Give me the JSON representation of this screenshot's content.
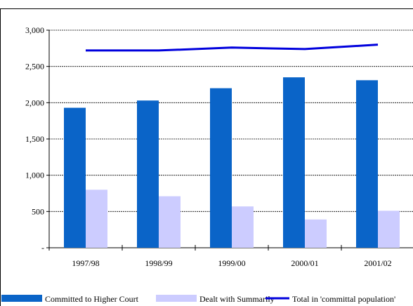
{
  "chart_data": {
    "type": "bar",
    "categories": [
      "1997/98",
      "1998/99",
      "1999/00",
      "2000/01",
      "2001/02"
    ],
    "series": [
      {
        "name": "Committed to Higher Court",
        "kind": "bar",
        "color": "#0a64c8",
        "values": [
          1930,
          2030,
          2200,
          2350,
          2310
        ]
      },
      {
        "name": "Dealt with Summarily",
        "kind": "bar",
        "color": "#ccccff",
        "values": [
          800,
          710,
          570,
          390,
          510
        ]
      },
      {
        "name": "Total in 'committal population'",
        "kind": "line",
        "color": "#0000dd",
        "values": [
          2720,
          2720,
          2760,
          2740,
          2800
        ]
      }
    ],
    "yticks": [
      "-",
      "500",
      "1,000",
      "1,500",
      "2,000",
      "2,500",
      "3,000"
    ],
    "ylim": [
      0,
      3000
    ],
    "grid": true,
    "legend_position": "bottom"
  }
}
